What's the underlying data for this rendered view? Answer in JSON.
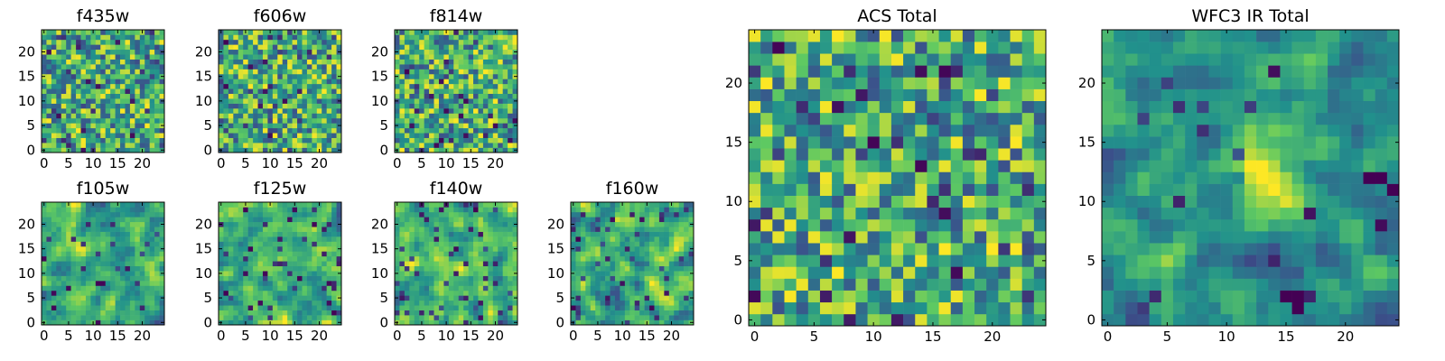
{
  "chart_data": [
    {
      "type": "heatmap",
      "title": "f435w",
      "x_ticks": [
        "0",
        "5",
        "10",
        "15",
        "20"
      ],
      "y_ticks": [
        "0",
        "5",
        "10",
        "15",
        "20"
      ],
      "grid_size": 25,
      "xlim": [
        -0.5,
        24.5
      ],
      "ylim": [
        -0.5,
        24.5
      ],
      "colormap": "viridis",
      "seed": 11,
      "smooth": false,
      "clip_low": 0.05
    },
    {
      "type": "heatmap",
      "title": "f606w",
      "x_ticks": [
        "0",
        "5",
        "10",
        "15",
        "20"
      ],
      "y_ticks": [
        "0",
        "5",
        "10",
        "15",
        "20"
      ],
      "grid_size": 25,
      "xlim": [
        -0.5,
        24.5
      ],
      "ylim": [
        -0.5,
        24.5
      ],
      "colormap": "viridis",
      "seed": 23,
      "smooth": false,
      "clip_low": 0.05
    },
    {
      "type": "heatmap",
      "title": "f814w",
      "x_ticks": [
        "0",
        "5",
        "10",
        "15",
        "20"
      ],
      "y_ticks": [
        "0",
        "5",
        "10",
        "15",
        "20"
      ],
      "grid_size": 25,
      "xlim": [
        -0.5,
        24.5
      ],
      "ylim": [
        -0.5,
        24.5
      ],
      "colormap": "viridis",
      "seed": 37,
      "smooth": false,
      "clip_low": 0.05
    },
    {
      "type": "heatmap",
      "title": "f105w",
      "x_ticks": [
        "0",
        "5",
        "10",
        "15",
        "20"
      ],
      "y_ticks": [
        "0",
        "5",
        "10",
        "15",
        "20"
      ],
      "grid_size": 25,
      "xlim": [
        -0.5,
        24.5
      ],
      "ylim": [
        -0.5,
        24.5
      ],
      "colormap": "viridis",
      "seed": 41,
      "smooth": true,
      "clip_low": 0.06
    },
    {
      "type": "heatmap",
      "title": "f125w",
      "x_ticks": [
        "0",
        "5",
        "10",
        "15",
        "20"
      ],
      "y_ticks": [
        "0",
        "5",
        "10",
        "15",
        "20"
      ],
      "grid_size": 25,
      "xlim": [
        -0.5,
        24.5
      ],
      "ylim": [
        -0.5,
        24.5
      ],
      "colormap": "viridis",
      "seed": 53,
      "smooth": true,
      "clip_low": 0.06
    },
    {
      "type": "heatmap",
      "title": "f140w",
      "x_ticks": [
        "0",
        "5",
        "10",
        "15",
        "20"
      ],
      "y_ticks": [
        "0",
        "5",
        "10",
        "15",
        "20"
      ],
      "grid_size": 25,
      "xlim": [
        -0.5,
        24.5
      ],
      "ylim": [
        -0.5,
        24.5
      ],
      "colormap": "viridis",
      "seed": 67,
      "smooth": true,
      "clip_low": 0.08
    },
    {
      "type": "heatmap",
      "title": "f160w",
      "x_ticks": [
        "0",
        "5",
        "10",
        "15",
        "20"
      ],
      "y_ticks": [
        "0",
        "5",
        "10",
        "15",
        "20"
      ],
      "grid_size": 25,
      "xlim": [
        -0.5,
        24.5
      ],
      "ylim": [
        -0.5,
        24.5
      ],
      "colormap": "viridis",
      "seed": 79,
      "smooth": true,
      "clip_low": 0.06
    },
    {
      "type": "heatmap",
      "title": "ACS Total",
      "x_ticks": [
        "0",
        "5",
        "10",
        "15",
        "20"
      ],
      "y_ticks": [
        "0",
        "5",
        "10",
        "15",
        "20"
      ],
      "grid_size": 25,
      "xlim": [
        -0.5,
        24.5
      ],
      "ylim": [
        -0.5,
        24.5
      ],
      "colormap": "viridis",
      "seed": 97,
      "smooth": false,
      "clip_low": 0.05
    },
    {
      "type": "heatmap",
      "title": "WFC3 IR Total",
      "x_ticks": [
        "0",
        "5",
        "10",
        "15",
        "20"
      ],
      "y_ticks": [
        "0",
        "5",
        "10",
        "15",
        "20"
      ],
      "grid_size": 25,
      "xlim": [
        -0.5,
        24.5
      ],
      "ylim": [
        -0.5,
        24.5
      ],
      "colormap": "viridis",
      "seed": 131,
      "smooth": true,
      "clip_low": 0.04,
      "bright_source": {
        "x": 13,
        "y": 12
      },
      "dark_spots": [
        {
          "x": 16,
          "y": 1
        },
        {
          "x": 16,
          "y": 2
        },
        {
          "x": 15,
          "y": 2
        },
        {
          "x": 23,
          "y": 12
        },
        {
          "x": 24,
          "y": 11
        },
        {
          "x": 22,
          "y": 12
        }
      ]
    }
  ],
  "colors": {
    "viridis": [
      "#440154",
      "#3b528b",
      "#21918c",
      "#5ec962",
      "#fde725"
    ],
    "background": "#ffffff",
    "axes": "#000000"
  }
}
